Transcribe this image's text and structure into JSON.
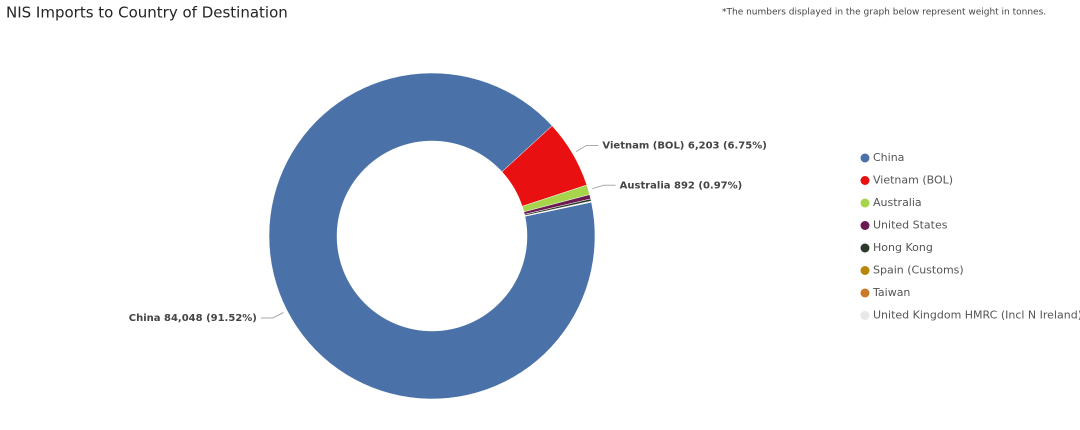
{
  "chart_data": {
    "type": "donut",
    "title": "NIS Imports to Country of Destination",
    "annotation": "*The numbers displayed in the graph below represent weight in tonnes.",
    "categories": [
      "China",
      "Vietnam (BOL)",
      "Australia",
      "United States",
      "Hong Kong",
      "Spain (Customs)",
      "Taiwan",
      "United Kingdom HMRC (Incl N Ireland)"
    ],
    "values": [
      84048,
      6203,
      892,
      400,
      200,
      50,
      30,
      13
    ],
    "value_labels": [
      "China 84,048 (91.52%)",
      "Vietnam (BOL) 6,203 (6.75%)",
      "Australia 892 (0.97%)",
      null,
      null,
      null,
      null,
      null
    ],
    "colors": [
      "#4a72a8",
      "#e81010",
      "#a6d44a",
      "#6b1b4f",
      "#2b3a2a",
      "#b8860b",
      "#c87a2a",
      "#e8e8e8"
    ]
  }
}
